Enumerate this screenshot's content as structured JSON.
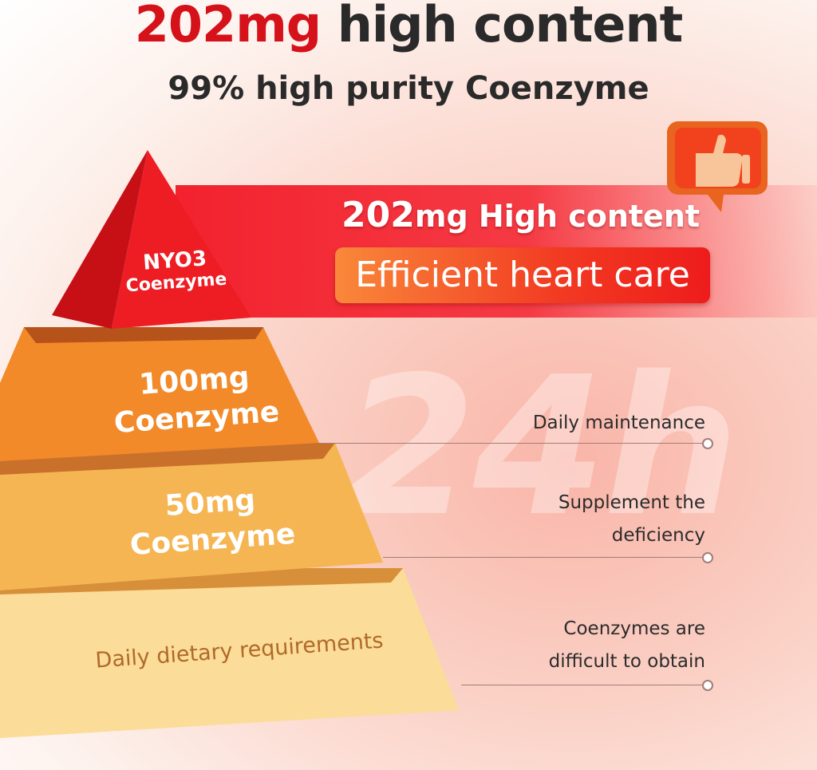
{
  "header": {
    "title_highlight": "202mg",
    "title_rest": " high content",
    "subtitle": "99% high purity Coenzyme"
  },
  "banner": {
    "headline_number": "202",
    "headline_rest": "mg High content",
    "pill": "Efficient heart care",
    "watermark": "24h",
    "icon": "thumbs-up-icon"
  },
  "pyramid": [
    {
      "line1": "NYO3",
      "line2": "Coenzyme",
      "color": "#e8141f"
    },
    {
      "line1": "100mg",
      "line2": "Coenzyme",
      "color": "#f28a2a"
    },
    {
      "line1": "50mg",
      "line2": "Coenzyme",
      "color": "#f6b553"
    },
    {
      "line1": "Daily dietary requirements",
      "color": "#fbdc99"
    }
  ],
  "annotations": [
    {
      "text": "Daily maintenance"
    },
    {
      "line1": "Supplement the",
      "line2": "deficiency"
    },
    {
      "line1": "Coenzymes are",
      "line2": "difficult to obtain"
    }
  ]
}
